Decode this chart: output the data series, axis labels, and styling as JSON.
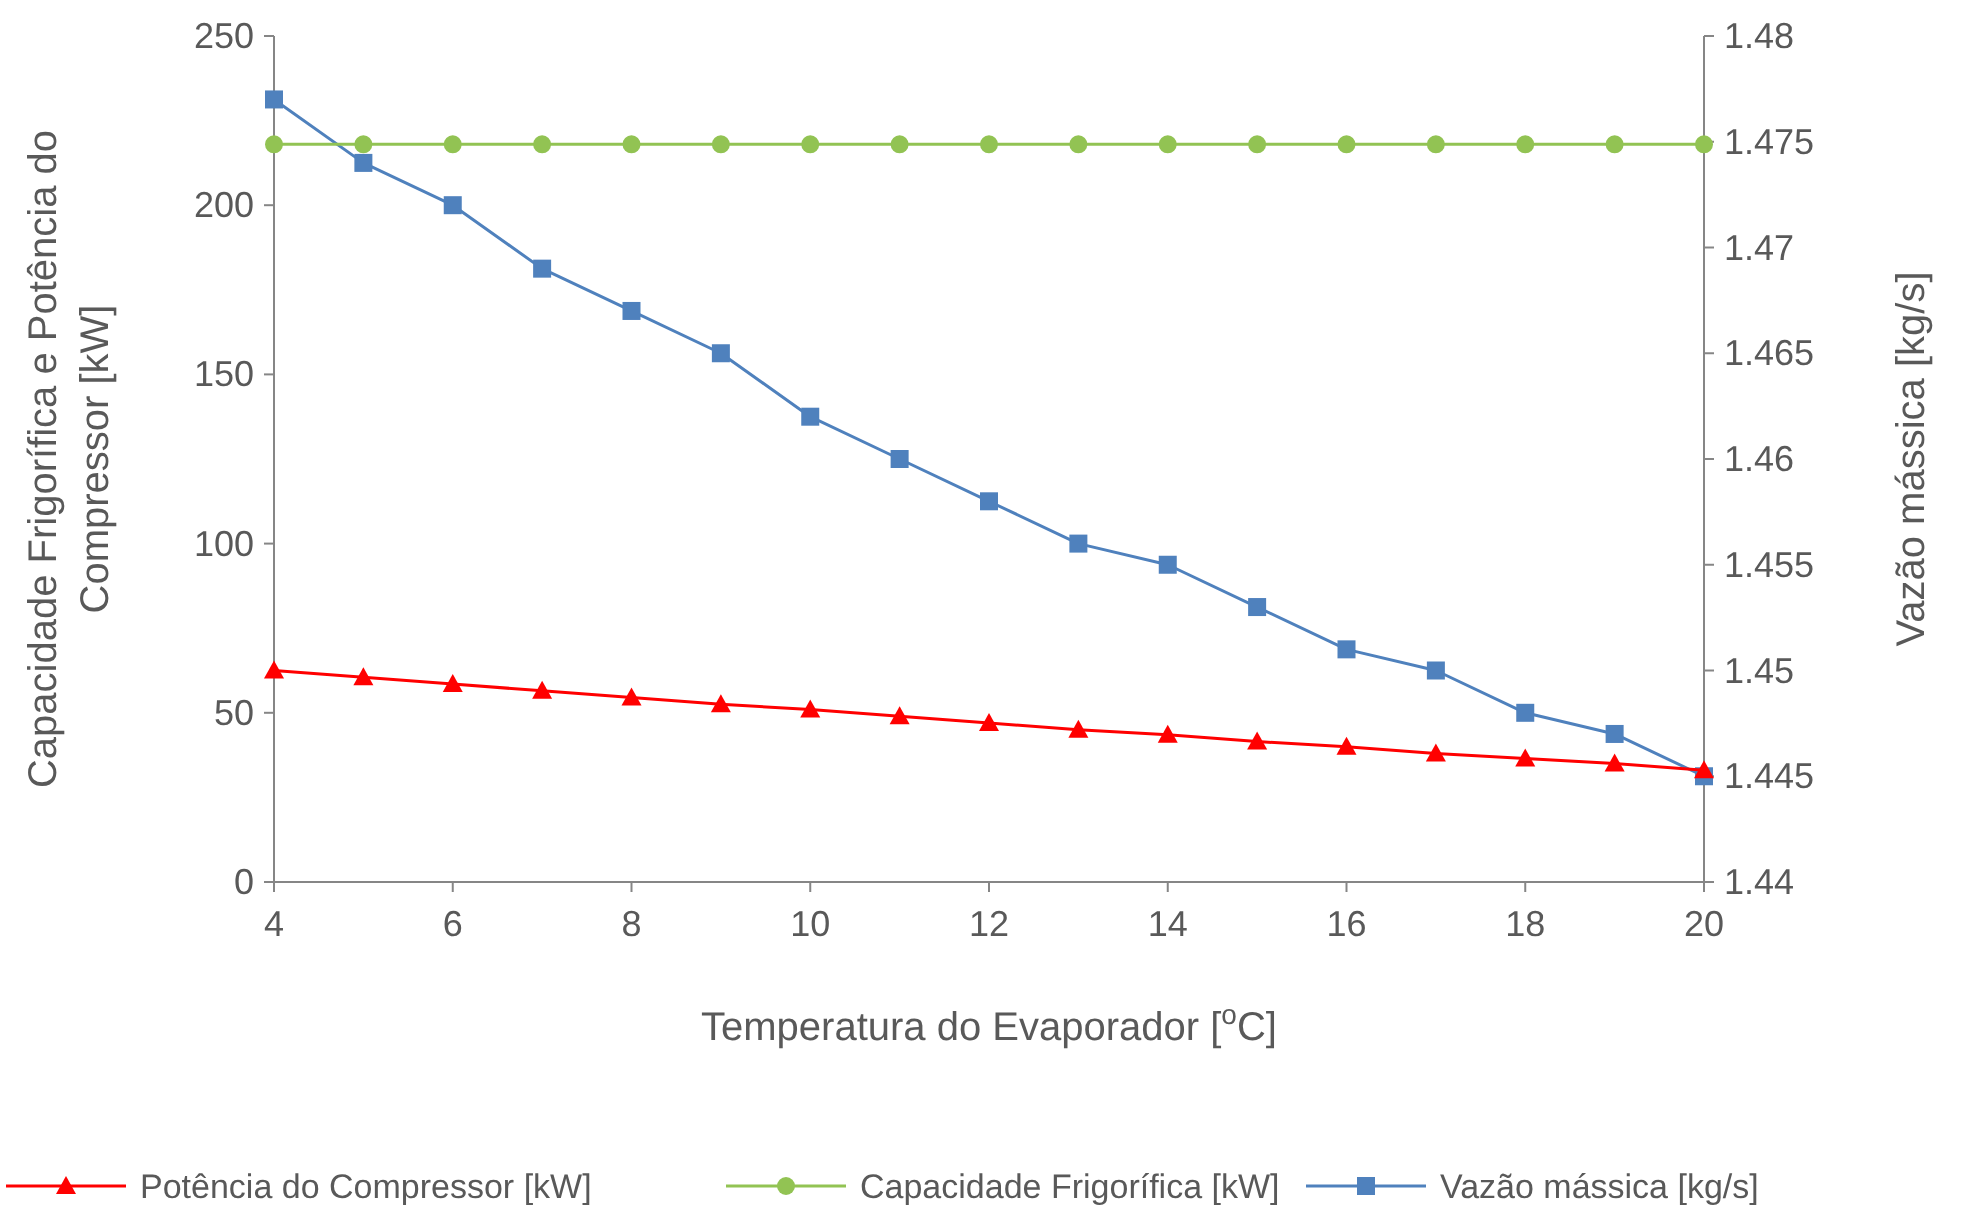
{
  "chart_data": {
    "type": "line",
    "xlabel": "Temperatura do Evaporador [$^{o}$C]",
    "ylabel": "Capacidade Frigorífica e Potência do Compressor [kW]",
    "y2label": "Vazão mássica [kg/s]",
    "x": [
      4,
      5,
      6,
      7,
      8,
      9,
      10,
      11,
      12,
      13,
      14,
      15,
      16,
      17,
      18,
      19,
      20
    ],
    "xlim": [
      4,
      20
    ],
    "xticks": [
      4,
      6,
      8,
      10,
      12,
      14,
      16,
      18,
      20
    ],
    "ylim": [
      0,
      250
    ],
    "yticks": [
      0,
      50,
      100,
      150,
      200,
      250
    ],
    "y2lim": [
      1.44,
      1.48
    ],
    "y2ticks": [
      {
        "value": 1.44,
        "label": "1.44"
      },
      1.445,
      {
        "value": 1.45,
        "label": "1.45"
      },
      1.455,
      {
        "value": 1.46,
        "label": "1.46"
      },
      1.465,
      {
        "value": 1.47,
        "label": "1.47"
      },
      1.475,
      {
        "value": 1.48,
        "label": "1.48"
      }
    ],
    "grid": false,
    "legend": "bottom",
    "line_style": "solid",
    "series": [
      {
        "name": "Potência do Compressor [kW]",
        "color": "#ff0000",
        "marker": "triangle",
        "values": [
          62.5,
          60.5,
          58.5,
          56.5,
          54.5,
          52.5,
          51,
          49,
          47,
          45,
          43.5,
          41.5,
          40,
          38,
          36.5,
          35,
          33
        ]
      },
      {
        "name": "Capacidade Frigorífica [kW]",
        "color": "#92c353",
        "marker": "circle",
        "values": [
          218,
          218,
          218,
          218,
          218,
          218,
          218,
          218,
          218,
          218,
          218,
          218,
          218,
          218,
          218,
          218,
          218
        ]
      },
      {
        "name": "Vazão mássica [kg/s]",
        "color": "#4f81bd",
        "marker": "square",
        "axis": "y2",
        "values": [
          1.477,
          1.474,
          1.472,
          1.469,
          1.467,
          1.465,
          1.462,
          1.46,
          1.458,
          1.456,
          1.455,
          1.453,
          1.451,
          1.45,
          1.448,
          1.447,
          1.445
        ]
      }
    ]
  }
}
